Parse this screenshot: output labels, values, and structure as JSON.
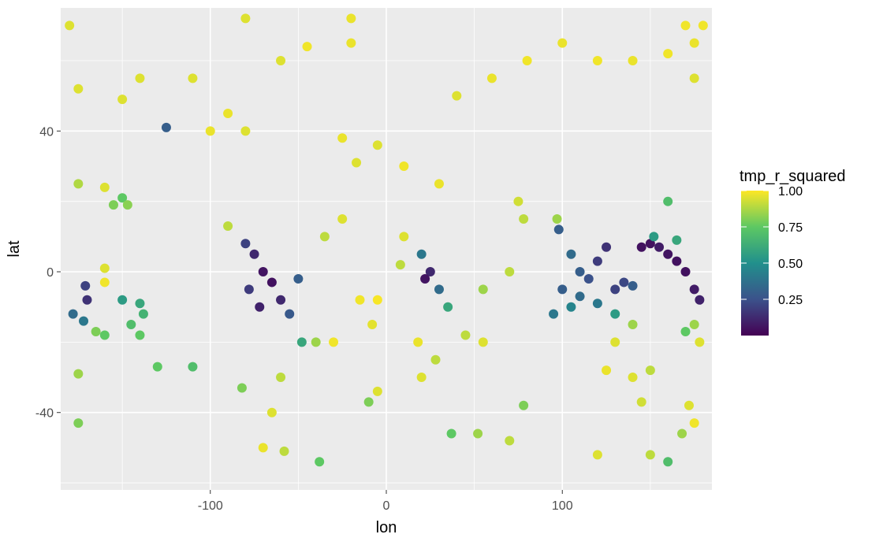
{
  "chart_data": {
    "type": "scatter",
    "title": "",
    "xlabel": "lon",
    "ylabel": "lat",
    "xlim": [
      -185,
      185
    ],
    "ylim": [
      -62,
      75
    ],
    "x_ticks": [
      -100,
      0,
      100
    ],
    "x_tick_labels": [
      "-100",
      "0",
      "100"
    ],
    "y_ticks": [
      -40,
      0,
      40
    ],
    "y_tick_labels": [
      "-40",
      "0",
      "40"
    ],
    "grid": true,
    "panel_background": "#ebebeb",
    "grid_color": "#ffffff",
    "legend": {
      "title": "tmp_r_squared",
      "placement": "right",
      "colormap": "viridis",
      "min": 0.0,
      "max": 1.0,
      "ticks": [
        1.0,
        0.75,
        0.5,
        0.25
      ],
      "tick_labels": [
        "1.00",
        "0.75",
        "0.50",
        "0.25"
      ],
      "stops": [
        "#440154",
        "#3b528b",
        "#21908c",
        "#5dc863",
        "#fde725"
      ]
    },
    "series": [
      {
        "points": [
          [
            -175,
            25,
            0.88
          ],
          [
            -160,
            24,
            0.95
          ],
          [
            -150,
            21,
            0.75
          ],
          [
            -155,
            19,
            0.8
          ],
          [
            -147,
            19,
            0.82
          ],
          [
            -178,
            -12,
            0.35
          ],
          [
            -172,
            -14,
            0.4
          ],
          [
            -171,
            -4,
            0.2
          ],
          [
            -170,
            -8,
            0.15
          ],
          [
            -160,
            1,
            0.95
          ],
          [
            -160,
            -3,
            0.98
          ],
          [
            -150,
            -8,
            0.55
          ],
          [
            -145,
            -15,
            0.7
          ],
          [
            -140,
            -18,
            0.75
          ],
          [
            -165,
            -17,
            0.8
          ],
          [
            -160,
            -18,
            0.75
          ],
          [
            -175,
            -29,
            0.85
          ],
          [
            -130,
            -27,
            0.75
          ],
          [
            -110,
            -27,
            0.7
          ],
          [
            -175,
            -43,
            0.8
          ],
          [
            -140,
            -9,
            0.6
          ],
          [
            -138,
            -12,
            0.65
          ],
          [
            -125,
            41,
            0.3
          ],
          [
            -150,
            49,
            0.95
          ],
          [
            -175,
            52,
            0.95
          ],
          [
            -140,
            55,
            0.95
          ],
          [
            -90,
            13,
            0.9
          ],
          [
            -80,
            8,
            0.2
          ],
          [
            -75,
            5,
            0.12
          ],
          [
            -70,
            0,
            0.06
          ],
          [
            -65,
            -3,
            0.05
          ],
          [
            -60,
            -8,
            0.12
          ],
          [
            -55,
            -12,
            0.28
          ],
          [
            -72,
            -10,
            0.1
          ],
          [
            -78,
            -5,
            0.18
          ],
          [
            -50,
            -2,
            0.3
          ],
          [
            -48,
            -20,
            0.6
          ],
          [
            -60,
            -30,
            0.9
          ],
          [
            -65,
            -40,
            0.95
          ],
          [
            -70,
            -50,
            0.97
          ],
          [
            -100,
            40,
            0.97
          ],
          [
            -90,
            45,
            0.97
          ],
          [
            -80,
            40,
            0.95
          ],
          [
            -110,
            55,
            0.95
          ],
          [
            -60,
            60,
            0.95
          ],
          [
            -45,
            64,
            0.98
          ],
          [
            -20,
            65,
            0.97
          ],
          [
            -25,
            15,
            0.95
          ],
          [
            -15,
            -8,
            0.98
          ],
          [
            -10,
            -37,
            0.8
          ],
          [
            -5,
            -8,
            0.99
          ],
          [
            10,
            10,
            0.95
          ],
          [
            20,
            5,
            0.4
          ],
          [
            25,
            0,
            0.12
          ],
          [
            22,
            -2,
            0.06
          ],
          [
            30,
            -5,
            0.35
          ],
          [
            35,
            -10,
            0.6
          ],
          [
            28,
            -25,
            0.9
          ],
          [
            20,
            -30,
            0.95
          ],
          [
            18,
            -20,
            0.97
          ],
          [
            10,
            30,
            0.98
          ],
          [
            30,
            25,
            0.97
          ],
          [
            40,
            50,
            0.95
          ],
          [
            60,
            55,
            0.97
          ],
          [
            80,
            60,
            0.98
          ],
          [
            100,
            65,
            0.97
          ],
          [
            120,
            60,
            0.98
          ],
          [
            140,
            60,
            0.97
          ],
          [
            160,
            62,
            0.98
          ],
          [
            75,
            20,
            0.93
          ],
          [
            78,
            15,
            0.9
          ],
          [
            70,
            0,
            0.9
          ],
          [
            55,
            -5,
            0.85
          ],
          [
            55,
            -20,
            0.95
          ],
          [
            45,
            -18,
            0.9
          ],
          [
            97,
            15,
            0.85
          ],
          [
            98,
            12,
            0.3
          ],
          [
            105,
            5,
            0.35
          ],
          [
            110,
            0,
            0.3
          ],
          [
            115,
            -2,
            0.25
          ],
          [
            120,
            3,
            0.18
          ],
          [
            125,
            7,
            0.15
          ],
          [
            130,
            -5,
            0.2
          ],
          [
            135,
            -3,
            0.22
          ],
          [
            140,
            -4,
            0.3
          ],
          [
            145,
            7,
            0.05
          ],
          [
            150,
            8,
            0.05
          ],
          [
            155,
            7,
            0.08
          ],
          [
            160,
            5,
            0.06
          ],
          [
            165,
            3,
            0.05
          ],
          [
            170,
            0,
            0.05
          ],
          [
            175,
            -5,
            0.08
          ],
          [
            178,
            -8,
            0.1
          ],
          [
            152,
            10,
            0.55
          ],
          [
            165,
            9,
            0.6
          ],
          [
            100,
            -5,
            0.3
          ],
          [
            95,
            -12,
            0.4
          ],
          [
            105,
            -10,
            0.45
          ],
          [
            110,
            -7,
            0.35
          ],
          [
            120,
            -9,
            0.4
          ],
          [
            130,
            -12,
            0.55
          ],
          [
            140,
            -15,
            0.85
          ],
          [
            130,
            -20,
            0.95
          ],
          [
            125,
            -28,
            0.97
          ],
          [
            140,
            -30,
            0.95
          ],
          [
            145,
            -37,
            0.93
          ],
          [
            150,
            -28,
            0.9
          ],
          [
            160,
            20,
            0.7
          ],
          [
            175,
            -15,
            0.85
          ],
          [
            178,
            -20,
            0.95
          ],
          [
            170,
            -17,
            0.75
          ],
          [
            172,
            -38,
            0.95
          ],
          [
            175,
            -43,
            0.98
          ],
          [
            168,
            -46,
            0.85
          ],
          [
            160,
            -54,
            0.7
          ],
          [
            150,
            -52,
            0.9
          ],
          [
            120,
            -52,
            0.95
          ],
          [
            78,
            -38,
            0.8
          ],
          [
            70,
            -48,
            0.9
          ],
          [
            52,
            -46,
            0.85
          ],
          [
            37,
            -46,
            0.75
          ],
          [
            -38,
            -54,
            0.75
          ],
          [
            -58,
            -51,
            0.9
          ],
          [
            -82,
            -33,
            0.8
          ],
          [
            -40,
            -20,
            0.85
          ],
          [
            -35,
            10,
            0.9
          ],
          [
            170,
            70,
            0.98
          ],
          [
            175,
            65,
            0.97
          ],
          [
            180,
            70,
            0.98
          ],
          [
            -180,
            70,
            0.95
          ],
          [
            -80,
            72,
            0.95
          ],
          [
            -20,
            72,
            0.97
          ],
          [
            -5,
            36,
            0.95
          ],
          [
            -17,
            31,
            0.95
          ],
          [
            -25,
            38,
            0.97
          ],
          [
            -30,
            -20,
            0.98
          ],
          [
            -8,
            -15,
            0.96
          ],
          [
            8,
            2,
            0.9
          ],
          [
            -5,
            -34,
            0.95
          ],
          [
            175,
            55,
            0.95
          ]
        ]
      }
    ]
  }
}
